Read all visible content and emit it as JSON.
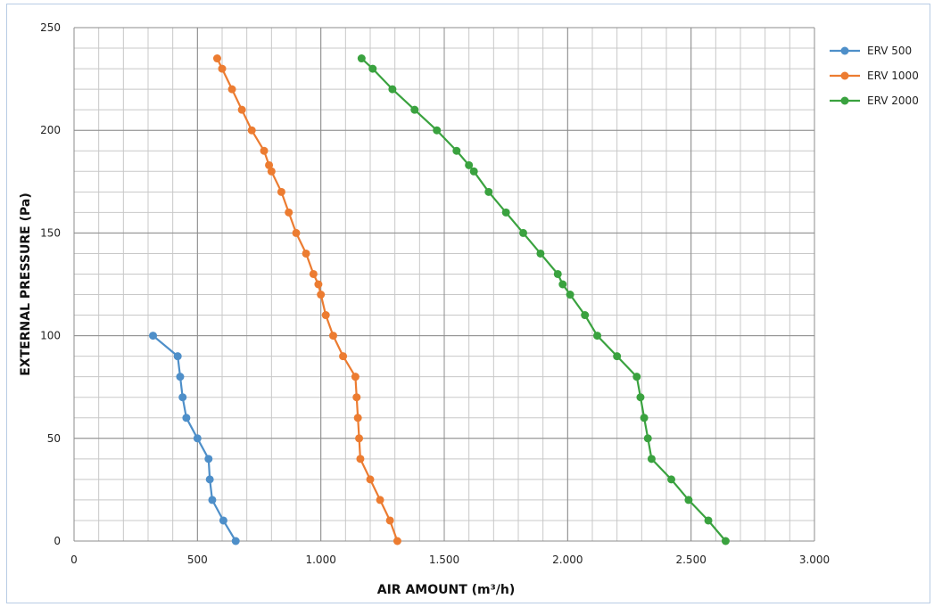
{
  "chart_data": {
    "type": "line",
    "title": "",
    "xlabel": "AIR AMOUNT  (m³/h)",
    "ylabel": "EXTERNAL PRESSURE  (Pa)",
    "xlim": [
      0,
      3000
    ],
    "ylim": [
      0,
      250
    ],
    "x_ticks": [
      0,
      500,
      1000,
      1500,
      2000,
      2500,
      3000
    ],
    "x_tick_labels": [
      "0",
      "500",
      "1.000",
      "1.500",
      "2.000",
      "2.500",
      "3.000"
    ],
    "y_ticks": [
      0,
      50,
      100,
      150,
      200,
      250
    ],
    "y_tick_labels": [
      "0",
      "50",
      "100",
      "150",
      "200",
      "250"
    ],
    "grid": true,
    "legend_position": "right",
    "series": [
      {
        "name": "ERV 500",
        "color": "#4e8fc9",
        "points": [
          [
            320,
            100
          ],
          [
            420,
            90
          ],
          [
            430,
            80
          ],
          [
            440,
            70
          ],
          [
            455,
            60
          ],
          [
            500,
            50
          ],
          [
            545,
            40
          ],
          [
            550,
            30
          ],
          [
            560,
            20
          ],
          [
            605,
            10
          ],
          [
            655,
            0
          ]
        ]
      },
      {
        "name": "ERV 1000",
        "color": "#ec7c31",
        "points": [
          [
            580,
            235
          ],
          [
            600,
            230
          ],
          [
            640,
            220
          ],
          [
            680,
            210
          ],
          [
            720,
            200
          ],
          [
            770,
            190
          ],
          [
            790,
            183
          ],
          [
            800,
            180
          ],
          [
            840,
            170
          ],
          [
            870,
            160
          ],
          [
            900,
            150
          ],
          [
            940,
            140
          ],
          [
            970,
            130
          ],
          [
            990,
            125
          ],
          [
            1000,
            120
          ],
          [
            1020,
            110
          ],
          [
            1050,
            100
          ],
          [
            1090,
            90
          ],
          [
            1140,
            80
          ],
          [
            1145,
            70
          ],
          [
            1150,
            60
          ],
          [
            1155,
            50
          ],
          [
            1160,
            40
          ],
          [
            1200,
            30
          ],
          [
            1240,
            20
          ],
          [
            1280,
            10
          ],
          [
            1310,
            0
          ]
        ]
      },
      {
        "name": "ERV 2000",
        "color": "#3aa23f",
        "points": [
          [
            1165,
            235
          ],
          [
            1210,
            230
          ],
          [
            1290,
            220
          ],
          [
            1380,
            210
          ],
          [
            1470,
            200
          ],
          [
            1550,
            190
          ],
          [
            1600,
            183
          ],
          [
            1620,
            180
          ],
          [
            1680,
            170
          ],
          [
            1750,
            160
          ],
          [
            1820,
            150
          ],
          [
            1890,
            140
          ],
          [
            1960,
            130
          ],
          [
            1980,
            125
          ],
          [
            2010,
            120
          ],
          [
            2070,
            110
          ],
          [
            2120,
            100
          ],
          [
            2200,
            90
          ],
          [
            2280,
            80
          ],
          [
            2295,
            70
          ],
          [
            2310,
            60
          ],
          [
            2325,
            50
          ],
          [
            2340,
            40
          ],
          [
            2420,
            30
          ],
          [
            2490,
            20
          ],
          [
            2570,
            10
          ],
          [
            2640,
            0
          ]
        ]
      }
    ]
  }
}
